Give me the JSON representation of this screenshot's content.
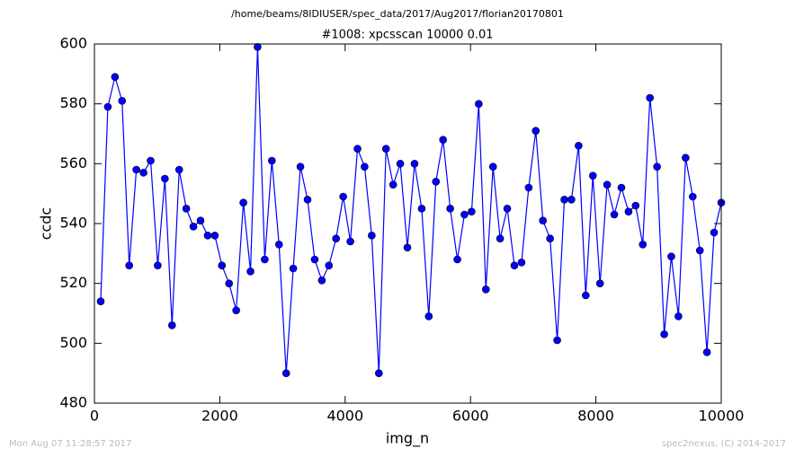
{
  "chart_data": {
    "type": "line",
    "suptitle": "/home/beams/8IDIUSER/spec_data/2017/Aug2017/florian20170801",
    "title": "#1008: xpcsscan 10000 0.01",
    "x_label": "img_n",
    "y_label": "ccdc",
    "footer_left": "Mon Aug 07 11:28:57 2017",
    "footer_right": "spec2nexus, (C) 2014-2017",
    "x": [
      100,
      214,
      328,
      441,
      555,
      669,
      783,
      897,
      1010,
      1124,
      1238,
      1352,
      1465,
      1579,
      1693,
      1807,
      1921,
      2034,
      2148,
      2262,
      2376,
      2490,
      2603,
      2717,
      2831,
      2945,
      3059,
      3172,
      3286,
      3400,
      3514,
      3628,
      3741,
      3855,
      3969,
      4083,
      4197,
      4310,
      4424,
      4538,
      4652,
      4766,
      4879,
      4993,
      5107,
      5221,
      5334,
      5448,
      5562,
      5676,
      5790,
      5903,
      6017,
      6131,
      6245,
      6359,
      6472,
      6586,
      6700,
      6814,
      6928,
      7041,
      7155,
      7269,
      7383,
      7497,
      7610,
      7724,
      7838,
      7952,
      8066,
      8179,
      8293,
      8407,
      8521,
      8634,
      8748,
      8862,
      8976,
      9090,
      9203,
      9317,
      9431,
      9545,
      9659,
      9772,
      9886,
      10000
    ],
    "series": [
      {
        "color": "#0000ff",
        "values": [
          514,
          579,
          589,
          581,
          526,
          558,
          557,
          561,
          526,
          555,
          506,
          558,
          545,
          539,
          541,
          536,
          536,
          526,
          520,
          511,
          547,
          524,
          599,
          528,
          561,
          533,
          490,
          525,
          559,
          548,
          528,
          521,
          526,
          535,
          549,
          534,
          565,
          559,
          536,
          490,
          565,
          553,
          560,
          532,
          560,
          545,
          509,
          554,
          568,
          545,
          528,
          543,
          544,
          580,
          518,
          559,
          535,
          545,
          526,
          527,
          552,
          571,
          541,
          535,
          501,
          548,
          548,
          566,
          516,
          556,
          520,
          553,
          543,
          552,
          544,
          546,
          533,
          582,
          559,
          503,
          529,
          509,
          562,
          549,
          531,
          497,
          537,
          547
        ]
      }
    ],
    "xlim": [
      0,
      10000
    ],
    "xticks": [
      0,
      2000,
      4000,
      6000,
      8000,
      10000
    ],
    "ylim": [
      480,
      600
    ],
    "yticks": [
      480,
      500,
      520,
      540,
      560,
      580,
      600
    ],
    "grid": false
  }
}
